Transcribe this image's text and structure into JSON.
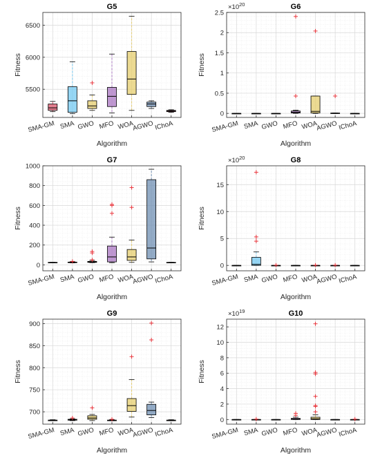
{
  "colors": {
    "SMA-GM": "#d9536a",
    "SMA": "#73c8f0",
    "GWO": "#e6cd6e",
    "MFO": "#a975c2",
    "WOA": "#e6cd6e",
    "AGWO": "#6f8fb3",
    "IChoA": "#c44d62",
    "outlier": "#e8333a",
    "grid": "#e3e3e3"
  },
  "chart_data": [
    {
      "type": "box",
      "title": "G5",
      "xlabel": "Algorithm",
      "ylabel": "Fitness",
      "categories": [
        "SMA-GM",
        "SMA",
        "GWO",
        "MFO",
        "WOA",
        "AGWO",
        "IChoA"
      ],
      "ylim": [
        5060,
        6700
      ],
      "yticks": [
        5500,
        6000,
        6500
      ],
      "ytick_labels": [
        "5500",
        "6000",
        "6500"
      ],
      "exponent": "",
      "boxes": [
        {
          "min": 5150,
          "q1": 5170,
          "median": 5210,
          "q3": 5270,
          "max": 5310,
          "outliers": []
        },
        {
          "min": 5120,
          "q1": 5140,
          "median": 5320,
          "q3": 5540,
          "max": 5930,
          "outliers": []
        },
        {
          "min": 5170,
          "q1": 5200,
          "median": 5240,
          "q3": 5320,
          "max": 5410,
          "outliers": [
            5600
          ]
        },
        {
          "min": 5130,
          "q1": 5230,
          "median": 5390,
          "q3": 5530,
          "max": 6050,
          "outliers": []
        },
        {
          "min": 5170,
          "q1": 5420,
          "median": 5660,
          "q3": 6090,
          "max": 6640,
          "outliers": []
        },
        {
          "min": 5200,
          "q1": 5230,
          "median": 5270,
          "q3": 5300,
          "max": 5320,
          "outliers": []
        },
        {
          "min": 5140,
          "q1": 5150,
          "median": 5160,
          "q3": 5170,
          "max": 5180,
          "outliers": []
        }
      ]
    },
    {
      "type": "box",
      "title": "G6",
      "xlabel": "Algorithm",
      "ylabel": "Fitness",
      "categories": [
        "SMA-GM",
        "SMA",
        "GWO",
        "MFO",
        "WOA",
        "AGWO",
        "IChoA"
      ],
      "ylim": [
        -0.1,
        2.5
      ],
      "yticks": [
        0,
        0.5,
        1,
        1.5,
        2,
        2.5
      ],
      "ytick_labels": [
        "0",
        "0.5",
        "1",
        "1.5",
        "2",
        "2.5"
      ],
      "exponent": "20",
      "boxes": [
        {
          "min": 0,
          "q1": 0,
          "median": 0,
          "q3": 0,
          "max": 0,
          "outliers": []
        },
        {
          "min": 0,
          "q1": 0,
          "median": 0,
          "q3": 0,
          "max": 0,
          "outliers": []
        },
        {
          "min": 0,
          "q1": 0,
          "median": 0,
          "q3": 0,
          "max": 0,
          "outliers": []
        },
        {
          "min": 0,
          "q1": 0.01,
          "median": 0.03,
          "q3": 0.06,
          "max": 0.08,
          "outliers": [
            0.43,
            2.4
          ]
        },
        {
          "min": 0,
          "q1": 0.01,
          "median": 0.05,
          "q3": 0.43,
          "max": 0.43,
          "outliers": [
            2.04
          ]
        },
        {
          "min": 0,
          "q1": 0,
          "median": 0,
          "q3": 0.01,
          "max": 0.01,
          "outliers": [
            0.43
          ]
        },
        {
          "min": 0,
          "q1": 0,
          "median": 0,
          "q3": 0,
          "max": 0,
          "outliers": []
        }
      ]
    },
    {
      "type": "box",
      "title": "G7",
      "xlabel": "Algorithm",
      "ylabel": "Fitness",
      "categories": [
        "SMA-GM",
        "SMA",
        "GWO",
        "MFO",
        "WOA",
        "AGWO",
        "IChoA"
      ],
      "ylim": [
        -60,
        1000
      ],
      "yticks": [
        0,
        200,
        400,
        600,
        800,
        1000
      ],
      "ytick_labels": [
        "0",
        "200",
        "400",
        "600",
        "800",
        "1000"
      ],
      "exponent": "",
      "boxes": [
        {
          "min": 22,
          "q1": 23,
          "median": 24,
          "q3": 25,
          "max": 26,
          "outliers": []
        },
        {
          "min": 20,
          "q1": 22,
          "median": 25,
          "q3": 28,
          "max": 32,
          "outliers": [
            35
          ]
        },
        {
          "min": 22,
          "q1": 25,
          "median": 30,
          "q3": 35,
          "max": 45,
          "outliers": [
            50,
            120,
            135
          ]
        },
        {
          "min": 22,
          "q1": 30,
          "median": 80,
          "q3": 190,
          "max": 280,
          "outliers": [
            520,
            600,
            610
          ]
        },
        {
          "min": 25,
          "q1": 45,
          "median": 80,
          "q3": 155,
          "max": 250,
          "outliers": [
            580,
            780
          ]
        },
        {
          "min": 30,
          "q1": 60,
          "median": 170,
          "q3": 860,
          "max": 965,
          "outliers": []
        },
        {
          "min": 22,
          "q1": 23,
          "median": 24,
          "q3": 25,
          "max": 26,
          "outliers": []
        }
      ]
    },
    {
      "type": "box",
      "title": "G8",
      "xlabel": "Algorithm",
      "ylabel": "Fitness",
      "categories": [
        "SMA-GM",
        "SMA",
        "GWO",
        "MFO",
        "WOA",
        "AGWO",
        "IChoA"
      ],
      "ylim": [
        -1,
        18.5
      ],
      "yticks": [
        0,
        5,
        10,
        15
      ],
      "ytick_labels": [
        "0",
        "5",
        "10",
        "15"
      ],
      "exponent": "20",
      "boxes": [
        {
          "min": 0,
          "q1": 0,
          "median": 0,
          "q3": 0,
          "max": 0,
          "outliers": []
        },
        {
          "min": 0,
          "q1": 0,
          "median": 0.2,
          "q3": 1.5,
          "max": 2.5,
          "outliers": [
            4.5,
            5.3,
            17.3
          ]
        },
        {
          "min": 0,
          "q1": 0,
          "median": 0,
          "q3": 0,
          "max": 0,
          "outliers": [
            0.05
          ]
        },
        {
          "min": 0,
          "q1": 0,
          "median": 0,
          "q3": 0,
          "max": 0,
          "outliers": []
        },
        {
          "min": 0,
          "q1": 0,
          "median": 0,
          "q3": 0,
          "max": 0,
          "outliers": [
            0.05
          ]
        },
        {
          "min": 0,
          "q1": 0,
          "median": 0,
          "q3": 0,
          "max": 0,
          "outliers": [
            0.05
          ]
        },
        {
          "min": 0,
          "q1": 0,
          "median": 0,
          "q3": 0,
          "max": 0,
          "outliers": []
        }
      ]
    },
    {
      "type": "box",
      "title": "G9",
      "xlabel": "Algorithm",
      "ylabel": "Fitness",
      "categories": [
        "SMA-GM",
        "SMA",
        "GWO",
        "MFO",
        "WOA",
        "AGWO",
        "IChoA"
      ],
      "ylim": [
        672,
        910
      ],
      "yticks": [
        700,
        750,
        800,
        850,
        900
      ],
      "ytick_labels": [
        "700",
        "750",
        "800",
        "850",
        "900"
      ],
      "exponent": "",
      "boxes": [
        {
          "min": 680,
          "q1": 680,
          "median": 681,
          "q3": 681,
          "max": 682,
          "outliers": []
        },
        {
          "min": 680,
          "q1": 681,
          "median": 682,
          "q3": 683,
          "max": 684,
          "outliers": [
            686
          ]
        },
        {
          "min": 680,
          "q1": 683,
          "median": 686,
          "q3": 691,
          "max": 694,
          "outliers": [
            709
          ]
        },
        {
          "min": 680,
          "q1": 680,
          "median": 681,
          "q3": 681,
          "max": 682,
          "outliers": [
            683
          ]
        },
        {
          "min": 688,
          "q1": 701,
          "median": 714,
          "q3": 730,
          "max": 773,
          "outliers": [
            825
          ]
        },
        {
          "min": 687,
          "q1": 693,
          "median": 703,
          "q3": 717,
          "max": 722,
          "outliers": [
            863,
            901
          ]
        },
        {
          "min": 680,
          "q1": 680,
          "median": 681,
          "q3": 681,
          "max": 682,
          "outliers": []
        }
      ]
    },
    {
      "type": "box",
      "title": "G10",
      "xlabel": "Algorithm",
      "ylabel": "Fitness",
      "categories": [
        "SMA-GM",
        "SMA",
        "GWO",
        "MFO",
        "WOA",
        "AGWO",
        "IChoA"
      ],
      "ylim": [
        -0.6,
        13
      ],
      "yticks": [
        0,
        2,
        4,
        6,
        8,
        10,
        12
      ],
      "ytick_labels": [
        "0",
        "2",
        "4",
        "6",
        "8",
        "10",
        "12"
      ],
      "exponent": "19",
      "boxes": [
        {
          "min": 0,
          "q1": 0,
          "median": 0,
          "q3": 0,
          "max": 0,
          "outliers": []
        },
        {
          "min": 0,
          "q1": 0,
          "median": 0,
          "q3": 0,
          "max": 0,
          "outliers": [
            0.05
          ]
        },
        {
          "min": 0,
          "q1": 0,
          "median": 0,
          "q3": 0,
          "max": 0,
          "outliers": []
        },
        {
          "min": 0,
          "q1": 0,
          "median": 0.05,
          "q3": 0.15,
          "max": 0.3,
          "outliers": [
            0.55,
            0.8
          ]
        },
        {
          "min": 0,
          "q1": 0,
          "median": 0.1,
          "q3": 0.3,
          "max": 0.6,
          "outliers": [
            1,
            1.7,
            1.8,
            3,
            5.9,
            6.1,
            12.4
          ]
        },
        {
          "min": 0,
          "q1": 0,
          "median": 0,
          "q3": 0,
          "max": 0,
          "outliers": []
        },
        {
          "min": 0,
          "q1": 0,
          "median": 0,
          "q3": 0,
          "max": 0,
          "outliers": [
            0.05
          ]
        }
      ]
    }
  ]
}
